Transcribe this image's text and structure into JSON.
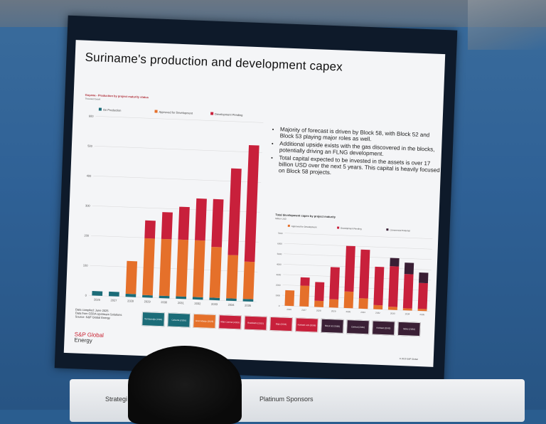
{
  "slide": {
    "title": "Suriname's production and development capex",
    "chart1_title": "Guyana - Production by project maturity status",
    "chart1_subtitle": "Thousand boe/d",
    "bullets": [
      "Majority of forecast is driven by Block 58, with Block 52 and Block 53 playing major roles as well.",
      "Additional upside exists with the gas discovered in the blocks, potentially driving an FLNG development.",
      "Total capital expected to be invested in the assets is over 17 billion USD over the next 5 years. This capital is heavily focused on Block 58 projects."
    ],
    "chart2_title": "Total development capex by project maturity",
    "chart2_subtitle": "Million USD",
    "date_line1": "Data compiled: June 2025",
    "date_line2": "Data from CERA Upstream Solutions",
    "date_line3": "Source: S&P Global Energy",
    "logo_line1": "S&P Global",
    "logo_line2": "Energy",
    "copyright": "© 2025 S&P Global",
    "timeline": [
      {
        "name": "Tambaredjo (1982)",
        "color": "#1b6c78"
      },
      {
        "name": "Calcutta (2026)",
        "color": "#1b6c78"
      },
      {
        "name": "Gran Morgu (2028)",
        "color": "#e5702a"
      },
      {
        "name": "Moki Central (2029)",
        "color": "#c8203b"
      },
      {
        "name": "Roebiakhi (2031)",
        "color": "#c8203b"
      },
      {
        "name": "Baja (2034)",
        "color": "#c8203b"
      },
      {
        "name": "Korbeel Lob (2036)",
        "color": "#c8203b"
      },
      {
        "name": "Block 52 (2038)",
        "color": "#3a1f35"
      },
      {
        "name": "Central (2040)",
        "color": "#3a1f35"
      },
      {
        "name": "Korbeel (2042)",
        "color": "#3a1f35"
      },
      {
        "name": "Sloko (2050)",
        "color": "#3a1f35"
      }
    ]
  },
  "banner": {
    "left_text": "Strategi",
    "right_text": "Platinum Sponsors"
  },
  "chart_data": [
    {
      "type": "bar",
      "title": "Guyana - Production by project maturity status",
      "ylabel": "Thousand boe/d",
      "categories": [
        "2026",
        "2027",
        "2028",
        "2029",
        "2030",
        "2031",
        "2032",
        "2033",
        "2034",
        "2035"
      ],
      "ylim": [
        0,
        600
      ],
      "yticks": [
        0,
        100,
        200,
        300,
        400,
        500,
        600
      ],
      "legend": [
        "On Production",
        "Approved for Development",
        "Development Pending"
      ],
      "series": [
        {
          "name": "On Production",
          "color": "#1b6c78",
          "values": [
            15,
            15,
            10,
            8,
            8,
            8,
            8,
            8,
            8,
            8
          ]
        },
        {
          "name": "Approved for Development",
          "color": "#e5702a",
          "values": [
            0,
            0,
            110,
            190,
            190,
            190,
            190,
            170,
            145,
            125
          ]
        },
        {
          "name": "Development Pending",
          "color": "#c8203b",
          "values": [
            0,
            0,
            0,
            60,
            90,
            110,
            140,
            160,
            290,
            390
          ]
        }
      ]
    },
    {
      "type": "bar",
      "title": "Total development capex by project maturity",
      "ylabel": "Million USD",
      "categories": [
        "2026",
        "2027",
        "2028",
        "2029",
        "2030",
        "2031",
        "2032",
        "2033",
        "2034",
        "2035"
      ],
      "ylim": [
        0,
        7000
      ],
      "yticks": [
        0,
        1000,
        2000,
        3000,
        4000,
        5000,
        6000,
        7000
      ],
      "legend": [
        "Approved for Development",
        "Development Pending",
        "Commercial Potential"
      ],
      "series": [
        {
          "name": "Approved for Development",
          "color": "#e5702a",
          "values": [
            1500,
            2000,
            600,
            800,
            1600,
            1000,
            400,
            300,
            200,
            200
          ]
        },
        {
          "name": "Development Pending",
          "color": "#c8203b",
          "values": [
            0,
            800,
            1800,
            3100,
            4400,
            4700,
            3700,
            3900,
            3300,
            2500
          ]
        },
        {
          "name": "Commercial Potential",
          "color": "#3a1f35",
          "values": [
            0,
            0,
            0,
            0,
            0,
            0,
            0,
            800,
            1100,
            1000
          ]
        }
      ]
    }
  ]
}
